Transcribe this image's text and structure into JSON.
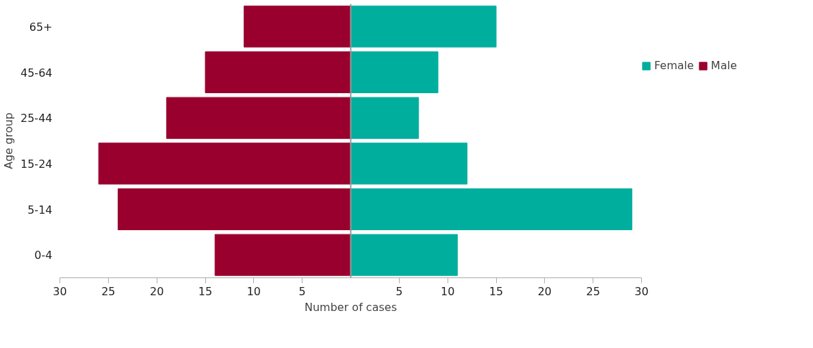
{
  "chart_data": {
    "type": "bar",
    "orientation": "horizontal",
    "xlabel": "Number of cases",
    "ylabel": "Age group",
    "categories": [
      "65+",
      "45-64",
      "25-44",
      "15-24",
      "5-14",
      "0-4"
    ],
    "series": [
      {
        "name": "Female",
        "color": "#00ae9e",
        "values": [
          15,
          9,
          7,
          12,
          29,
          11
        ]
      },
      {
        "name": "Male",
        "color": "#99002e",
        "values": [
          -11,
          -15,
          -19,
          -26,
          -24,
          -14
        ]
      }
    ],
    "xlim": [
      -30,
      30
    ],
    "xticks": [
      {
        "value": -30,
        "label": "30"
      },
      {
        "value": -25,
        "label": "25"
      },
      {
        "value": -20,
        "label": "20"
      },
      {
        "value": -15,
        "label": "15"
      },
      {
        "value": -10,
        "label": "10"
      },
      {
        "value": -5,
        "label": "5"
      },
      5,
      10,
      15,
      20,
      25,
      30
    ],
    "stacked": true,
    "grid": false,
    "legend": "right"
  }
}
